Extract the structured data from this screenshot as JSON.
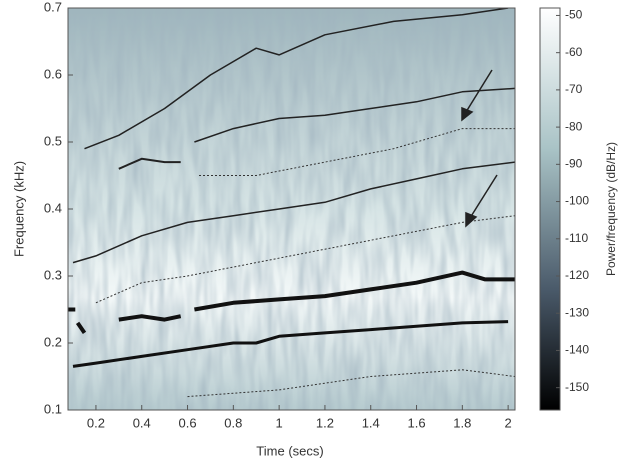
{
  "chart_data": {
    "type": "spectrogram",
    "xlabel": "Time (secs)",
    "ylabel": "Frequency (kHz)",
    "colorbar_label": "Power/frequency (dB/Hz)",
    "xlim": [
      0.078,
      2.03
    ],
    "ylim": [
      0.1,
      0.7
    ],
    "xticks": [
      0.2,
      0.4,
      0.6,
      0.8,
      1,
      1.2,
      1.4,
      1.6,
      1.8,
      2
    ],
    "yticks": [
      0.1,
      0.2,
      0.3,
      0.4,
      0.5,
      0.6,
      0.7
    ],
    "clim": [
      -156,
      -48
    ],
    "cticks": [
      -50,
      -60,
      -70,
      -80,
      -90,
      -100,
      -110,
      -120,
      -130,
      -140,
      -150
    ],
    "series": [
      {
        "color": "#111",
        "style": "solid",
        "width": 3,
        "x": [
          0.1,
          0.2,
          0.4,
          0.6,
          0.8,
          0.9,
          1.0,
          1.2,
          1.4,
          1.6,
          1.8,
          2.0
        ],
        "values": [
          0.165,
          0.17,
          0.18,
          0.19,
          0.2,
          0.2,
          0.21,
          0.215,
          0.22,
          0.225,
          0.23,
          0.232
        ]
      },
      {
        "color": "#111",
        "style": "solid",
        "width": 4,
        "x": [
          0.63,
          0.8,
          1.0,
          1.2,
          1.4,
          1.6,
          1.8,
          1.9,
          2.03
        ],
        "values": [
          0.25,
          0.26,
          0.265,
          0.27,
          0.28,
          0.29,
          0.305,
          0.295,
          0.295
        ]
      },
      {
        "color": "#111",
        "style": "solid",
        "width": 4,
        "x": [
          0.3,
          0.4,
          0.5,
          0.57
        ],
        "values": [
          0.235,
          0.24,
          0.235,
          0.24
        ]
      },
      {
        "color": "#111",
        "style": "solid",
        "width": 4,
        "x": [
          0.08,
          0.11
        ],
        "values": [
          0.25,
          0.25
        ]
      },
      {
        "color": "#111",
        "style": "solid",
        "width": 4,
        "x": [
          0.12,
          0.15
        ],
        "values": [
          0.23,
          0.215
        ]
      },
      {
        "color": "#222",
        "style": "solid",
        "width": 1.5,
        "x": [
          0.1,
          0.2,
          0.4,
          0.6,
          0.8,
          1.0,
          1.2,
          1.4,
          1.6,
          1.8,
          2.03
        ],
        "values": [
          0.32,
          0.33,
          0.36,
          0.38,
          0.39,
          0.4,
          0.41,
          0.43,
          0.445,
          0.46,
          0.47
        ]
      },
      {
        "color": "#222",
        "style": "solid",
        "width": 1.5,
        "x": [
          0.15,
          0.3,
          0.5,
          0.7,
          0.9,
          1.0,
          1.2,
          1.5,
          1.8,
          2.0
        ],
        "values": [
          0.49,
          0.51,
          0.55,
          0.6,
          0.64,
          0.63,
          0.66,
          0.68,
          0.69,
          0.7
        ]
      },
      {
        "color": "#222",
        "style": "solid",
        "width": 1.5,
        "x": [
          0.63,
          0.8,
          1.0,
          1.2,
          1.4,
          1.6,
          1.8,
          2.03
        ],
        "values": [
          0.5,
          0.52,
          0.535,
          0.54,
          0.55,
          0.56,
          0.575,
          0.58
        ]
      },
      {
        "color": "#222",
        "style": "solid",
        "width": 2,
        "x": [
          0.3,
          0.4,
          0.5,
          0.57
        ],
        "values": [
          0.46,
          0.475,
          0.47,
          0.47
        ]
      },
      {
        "color": "#333",
        "style": "dotted",
        "width": 1,
        "x": [
          0.65,
          0.9,
          1.2,
          1.5,
          1.8,
          2.03
        ],
        "values": [
          0.45,
          0.45,
          0.47,
          0.49,
          0.52,
          0.52
        ]
      },
      {
        "color": "#333",
        "style": "dotted",
        "width": 1,
        "x": [
          0.2,
          0.4,
          0.6,
          0.9,
          1.2,
          1.5,
          1.8,
          2.03
        ],
        "values": [
          0.26,
          0.29,
          0.3,
          0.32,
          0.34,
          0.36,
          0.38,
          0.39
        ]
      },
      {
        "color": "#333",
        "style": "dotted",
        "width": 1,
        "x": [
          0.6,
          1.0,
          1.4,
          1.8,
          2.03
        ],
        "values": [
          0.12,
          0.13,
          0.15,
          0.16,
          0.15
        ]
      }
    ]
  }
}
